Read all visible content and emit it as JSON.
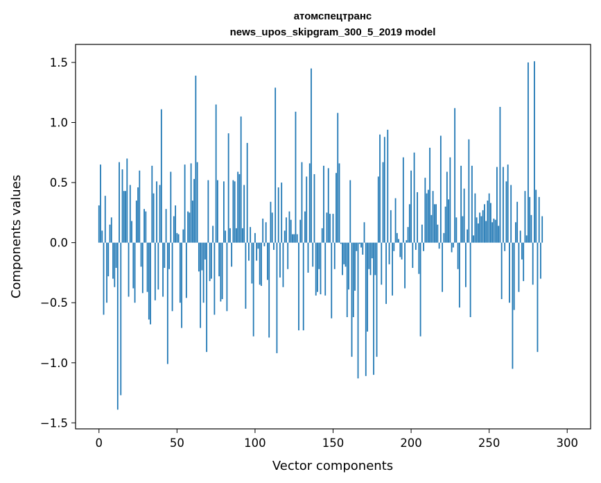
{
  "chart_data": {
    "type": "bar",
    "title_line1": "атомспецтранс",
    "title_line2": "news_upos_skipgram_300_5_2019 model",
    "xlabel": "Vector components",
    "ylabel": "Components values",
    "xlim": [
      -15,
      315
    ],
    "ylim": [
      -1.55,
      1.65
    ],
    "xticks": [
      0,
      50,
      100,
      150,
      200,
      250,
      300
    ],
    "xtick_labels": [
      "0",
      "50",
      "100",
      "150",
      "200",
      "250",
      "300"
    ],
    "yticks": [
      -1.5,
      -1.0,
      -0.5,
      0.0,
      0.5,
      1.0,
      1.5
    ],
    "ytick_labels": [
      "−1.5",
      "−1.0",
      "−0.5",
      "0.0",
      "0.5",
      "1.0",
      "1.5"
    ],
    "bar_color": "#1f77b4",
    "grid": false,
    "values": [
      0.31,
      0.65,
      0.1,
      -0.6,
      0.39,
      -0.5,
      -0.28,
      0.15,
      0.21,
      -0.3,
      -0.37,
      -0.21,
      -1.39,
      0.67,
      -1.27,
      0.61,
      0.43,
      0.43,
      0.7,
      -0.45,
      0.48,
      0.18,
      -0.38,
      -0.5,
      0.35,
      0.46,
      0.6,
      -0.2,
      -0.42,
      0.28,
      0.26,
      -0.41,
      -0.64,
      -0.68,
      0.64,
      0.41,
      -0.48,
      0.51,
      -0.39,
      0.48,
      1.11,
      -0.45,
      -0.21,
      0.28,
      -1.01,
      -0.22,
      0.59,
      -0.57,
      0.22,
      0.31,
      0.08,
      0.07,
      -0.5,
      -0.71,
      0.11,
      0.65,
      -0.46,
      0.26,
      0.25,
      0.66,
      0.35,
      0.53,
      1.39,
      0.67,
      -0.24,
      -0.71,
      -0.23,
      -0.5,
      -0.14,
      -0.91,
      0.52,
      -0.32,
      -0.3,
      0.14,
      -0.6,
      1.15,
      0.52,
      -0.28,
      -0.49,
      -0.47,
      0.51,
      0.1,
      -0.57,
      0.91,
      0.12,
      -0.2,
      0.52,
      0.51,
      0.12,
      0.59,
      0.57,
      1.05,
      0.12,
      0.48,
      -0.55,
      0.83,
      -0.15,
      0.13,
      -0.34,
      -0.78,
      0.08,
      -0.15,
      -0.05,
      -0.35,
      -0.36,
      0.2,
      -0.03,
      0.17,
      -0.31,
      -0.79,
      0.34,
      0.25,
      -0.06,
      1.29,
      -0.92,
      0.46,
      -0.29,
      0.5,
      -0.37,
      0.1,
      0.21,
      -0.22,
      0.26,
      0.19,
      0.07,
      0.07,
      1.09,
      0.07,
      -0.73,
      0.19,
      0.67,
      -0.73,
      0.26,
      0.55,
      -0.25,
      0.66,
      1.45,
      -0.2,
      0.57,
      -0.44,
      -0.41,
      -0.22,
      -0.43,
      0.12,
      0.64,
      -0.44,
      0.25,
      0.62,
      0.24,
      -0.63,
      0.24,
      -0.22,
      0.58,
      1.08,
      0.66,
      -0.01,
      -0.27,
      -0.18,
      -0.2,
      -0.62,
      -0.39,
      0.52,
      -0.95,
      -0.62,
      -0.4,
      -0.07,
      -1.13,
      -0.01,
      -0.04,
      -0.1,
      0.17,
      -1.11,
      -0.74,
      -0.22,
      -0.27,
      -0.13,
      -1.1,
      -0.27,
      -0.95,
      0.55,
      0.9,
      -0.35,
      0.67,
      0.88,
      -0.51,
      0.94,
      -0.18,
      0.27,
      -0.44,
      -0.07,
      0.37,
      0.08,
      0.03,
      -0.12,
      -0.14,
      0.71,
      -0.38,
      0.02,
      0.13,
      0.32,
      0.6,
      -0.21,
      0.75,
      -0.06,
      0.42,
      -0.26,
      -0.78,
      0.15,
      -0.07,
      0.54,
      0.41,
      0.44,
      0.79,
      0.23,
      0.43,
      0.32,
      0.32,
      0.15,
      -0.05,
      0.89,
      -0.41,
      0.08,
      0.3,
      0.59,
      0.36,
      0.71,
      -0.08,
      -0.04,
      1.12,
      0.21,
      -0.22,
      -0.54,
      0.64,
      0.22,
      0.45,
      -0.37,
      0.11,
      0.86,
      -0.62,
      0.64,
      0.06,
      0.41,
      0.21,
      0.16,
      0.25,
      0.22,
      0.27,
      0.32,
      0.18,
      0.35,
      0.41,
      0.33,
      0.17,
      0.2,
      0.19,
      0.63,
      0.14,
      1.13,
      -0.47,
      0.63,
      -0.07,
      0.51,
      0.65,
      -0.5,
      0.48,
      -1.05,
      -0.56,
      0.17,
      0.34,
      -0.41,
      0.1,
      -0.14,
      -0.32,
      0.43,
      0.06,
      1.5,
      0.38,
      0.23,
      -0.35,
      1.51,
      0.44,
      -0.91,
      0.38,
      -0.3,
      0.22
    ]
  }
}
